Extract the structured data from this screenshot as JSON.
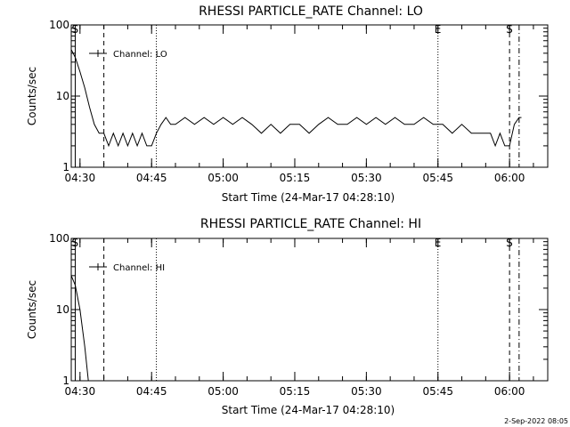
{
  "footer_timestamp": "2-Sep-2022 08:05",
  "chart_data": [
    {
      "type": "line",
      "title": "RHESSI PARTICLE_RATE Channel: LO",
      "xlabel": "Start Time (24-Mar-17 04:28:10)",
      "ylabel": "Counts/sec",
      "yscale": "log",
      "ylim": [
        1,
        100
      ],
      "yticks": [
        "1",
        "10",
        "100"
      ],
      "xlim": [
        "04:28:10",
        "06:08:00"
      ],
      "xticks": [
        "04:30",
        "04:45",
        "05:00",
        "05:15",
        "05:30",
        "05:45",
        "06:00"
      ],
      "legend": {
        "position": "top-left",
        "entries": [
          "Channel: LO"
        ]
      },
      "vlines": [
        {
          "time": "04:29:00",
          "style": "solid",
          "label": "S"
        },
        {
          "time": "04:35:00",
          "style": "dashed",
          "label": ""
        },
        {
          "time": "04:46:00",
          "style": "dotted",
          "label": ""
        },
        {
          "time": "05:45:00",
          "style": "dotted",
          "label": "E"
        },
        {
          "time": "06:00:00",
          "style": "dashed",
          "label": "S"
        },
        {
          "time": "06:02:00",
          "style": "dashdot",
          "label": ""
        }
      ],
      "series": [
        {
          "name": "Channel: LO",
          "points": [
            [
              "04:28:10",
              45
            ],
            [
              "04:29:00",
              35
            ],
            [
              "04:30:00",
              22
            ],
            [
              "04:31:00",
              13
            ],
            [
              "04:32:00",
              7
            ],
            [
              "04:33:00",
              4
            ],
            [
              "04:34:00",
              3
            ],
            [
              "04:35:00",
              3
            ],
            [
              "04:36:00",
              2
            ],
            [
              "04:37:00",
              3
            ],
            [
              "04:38:00",
              2
            ],
            [
              "04:39:00",
              3
            ],
            [
              "04:40:00",
              2
            ],
            [
              "04:41:00",
              3
            ],
            [
              "04:42:00",
              2
            ],
            [
              "04:43:00",
              3
            ],
            [
              "04:44:00",
              2
            ],
            [
              "04:45:00",
              2
            ],
            [
              "04:46:00",
              3
            ],
            [
              "04:47:00",
              4
            ],
            [
              "04:48:00",
              5
            ],
            [
              "04:49:00",
              4
            ],
            [
              "04:50:00",
              4
            ],
            [
              "04:52:00",
              5
            ],
            [
              "04:54:00",
              4
            ],
            [
              "04:56:00",
              5
            ],
            [
              "04:58:00",
              4
            ],
            [
              "05:00:00",
              5
            ],
            [
              "05:02:00",
              4
            ],
            [
              "05:04:00",
              5
            ],
            [
              "05:06:00",
              4
            ],
            [
              "05:08:00",
              3
            ],
            [
              "05:10:00",
              4
            ],
            [
              "05:12:00",
              3
            ],
            [
              "05:14:00",
              4
            ],
            [
              "05:16:00",
              4
            ],
            [
              "05:18:00",
              3
            ],
            [
              "05:20:00",
              4
            ],
            [
              "05:22:00",
              5
            ],
            [
              "05:24:00",
              4
            ],
            [
              "05:26:00",
              4
            ],
            [
              "05:28:00",
              5
            ],
            [
              "05:30:00",
              4
            ],
            [
              "05:32:00",
              5
            ],
            [
              "05:34:00",
              4
            ],
            [
              "05:36:00",
              5
            ],
            [
              "05:38:00",
              4
            ],
            [
              "05:40:00",
              4
            ],
            [
              "05:42:00",
              5
            ],
            [
              "05:44:00",
              4
            ],
            [
              "05:46:00",
              4
            ],
            [
              "05:48:00",
              3
            ],
            [
              "05:50:00",
              4
            ],
            [
              "05:52:00",
              3
            ],
            [
              "05:54:00",
              3
            ],
            [
              "05:56:00",
              3
            ],
            [
              "05:57:00",
              2
            ],
            [
              "05:58:00",
              3
            ],
            [
              "05:59:00",
              2
            ],
            [
              "06:00:00",
              2
            ],
            [
              "06:01:00",
              4
            ],
            [
              "06:02:00",
              5
            ],
            [
              "06:02:30",
              5
            ]
          ]
        }
      ]
    },
    {
      "type": "line",
      "title": "RHESSI PARTICLE_RATE Channel: HI",
      "xlabel": "Start Time (24-Mar-17 04:28:10)",
      "ylabel": "Counts/sec",
      "yscale": "log",
      "ylim": [
        1,
        100
      ],
      "yticks": [
        "1",
        "10",
        "100"
      ],
      "xlim": [
        "04:28:10",
        "06:08:00"
      ],
      "xticks": [
        "04:30",
        "04:45",
        "05:00",
        "05:15",
        "05:30",
        "05:45",
        "06:00"
      ],
      "legend": {
        "position": "top-left",
        "entries": [
          "Channel: HI"
        ]
      },
      "vlines": [
        {
          "time": "04:29:00",
          "style": "solid",
          "label": "S"
        },
        {
          "time": "04:35:00",
          "style": "dashed",
          "label": ""
        },
        {
          "time": "04:46:00",
          "style": "dotted",
          "label": ""
        },
        {
          "time": "05:45:00",
          "style": "dotted",
          "label": "E"
        },
        {
          "time": "06:00:00",
          "style": "dashed",
          "label": "S"
        },
        {
          "time": "06:02:00",
          "style": "dashdot",
          "label": ""
        }
      ],
      "series": [
        {
          "name": "Channel: HI",
          "points": [
            [
              "04:28:10",
              30
            ],
            [
              "04:29:00",
              22
            ],
            [
              "04:30:00",
              10
            ],
            [
              "04:31:00",
              3
            ],
            [
              "04:31:45",
              1
            ]
          ]
        }
      ]
    }
  ]
}
